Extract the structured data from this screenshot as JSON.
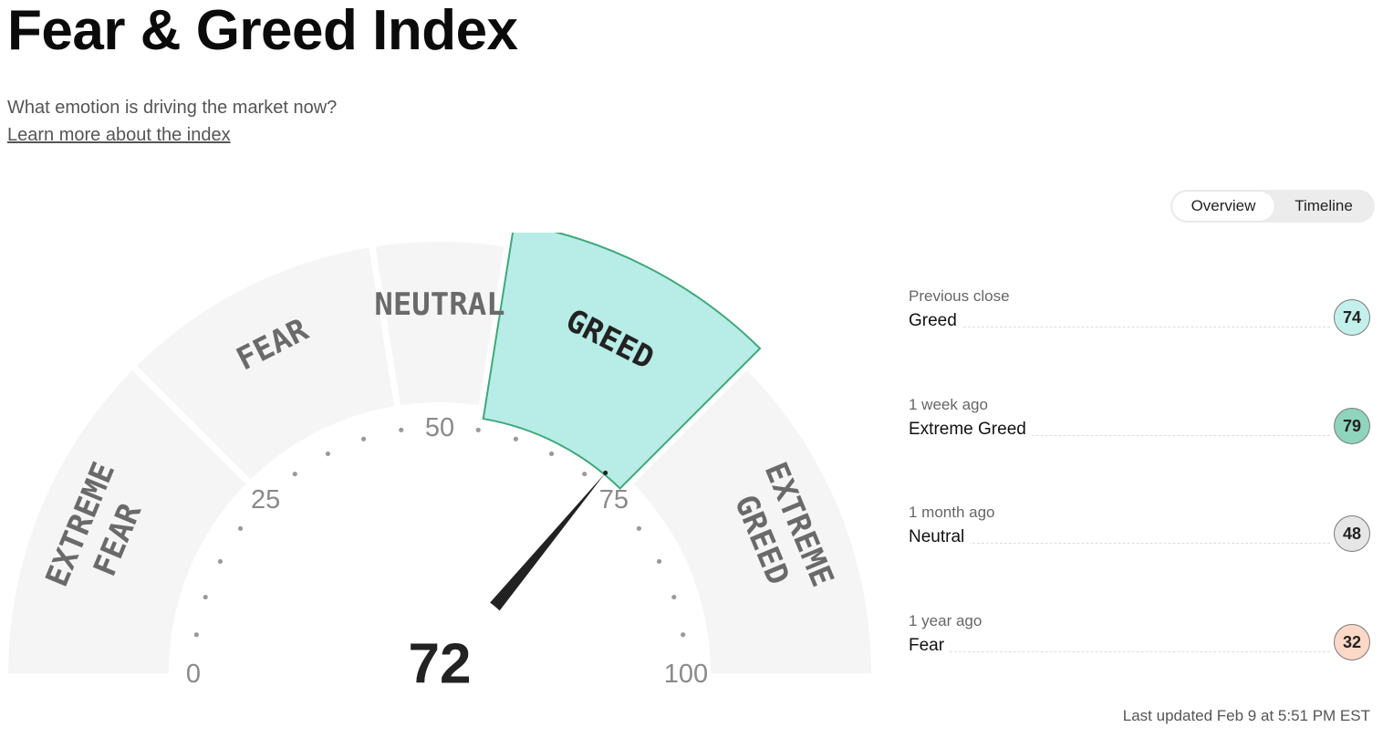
{
  "header": {
    "title": "Fear & Greed Index",
    "subtitle": "What emotion is driving the market now?",
    "learn_more": "Learn more about the index"
  },
  "view_toggle": {
    "options": [
      "Overview",
      "Timeline"
    ],
    "selected": "Overview"
  },
  "gauge": {
    "score": "72",
    "current_rating": "Greed",
    "range": [
      0,
      100
    ],
    "tick_labels": [
      "0",
      "25",
      "50",
      "75",
      "100"
    ],
    "segments": [
      {
        "id": "extreme-fear",
        "label": [
          "EXTREME",
          "FEAR"
        ],
        "from": 0,
        "to": 25
      },
      {
        "id": "fear",
        "label": [
          "FEAR"
        ],
        "from": 25,
        "to": 45
      },
      {
        "id": "neutral",
        "label": [
          "NEUTRAL"
        ],
        "from": 45,
        "to": 55
      },
      {
        "id": "greed",
        "label": [
          "GREED"
        ],
        "from": 55,
        "to": 75
      },
      {
        "id": "extreme-greed",
        "label": [
          "EXTREME",
          "GREED"
        ],
        "from": 75,
        "to": 100
      }
    ],
    "colors": {
      "segment": "#f5f5f5",
      "active_fill": "#b8ece6",
      "active_stroke": "#3fa87a",
      "needle": "#222222"
    }
  },
  "history": [
    {
      "when": "Previous close",
      "rating": "Greed",
      "value": "74",
      "color": "#c4f0ec"
    },
    {
      "when": "1 week ago",
      "rating": "Extreme Greed",
      "value": "79",
      "color": "#8fd4bc"
    },
    {
      "when": "1 month ago",
      "rating": "Neutral",
      "value": "48",
      "color": "#e6e6e6"
    },
    {
      "when": "1 year ago",
      "rating": "Fear",
      "value": "32",
      "color": "#fdd8c6"
    }
  ],
  "last_updated": "Last updated Feb 9 at 5:51 PM EST"
}
